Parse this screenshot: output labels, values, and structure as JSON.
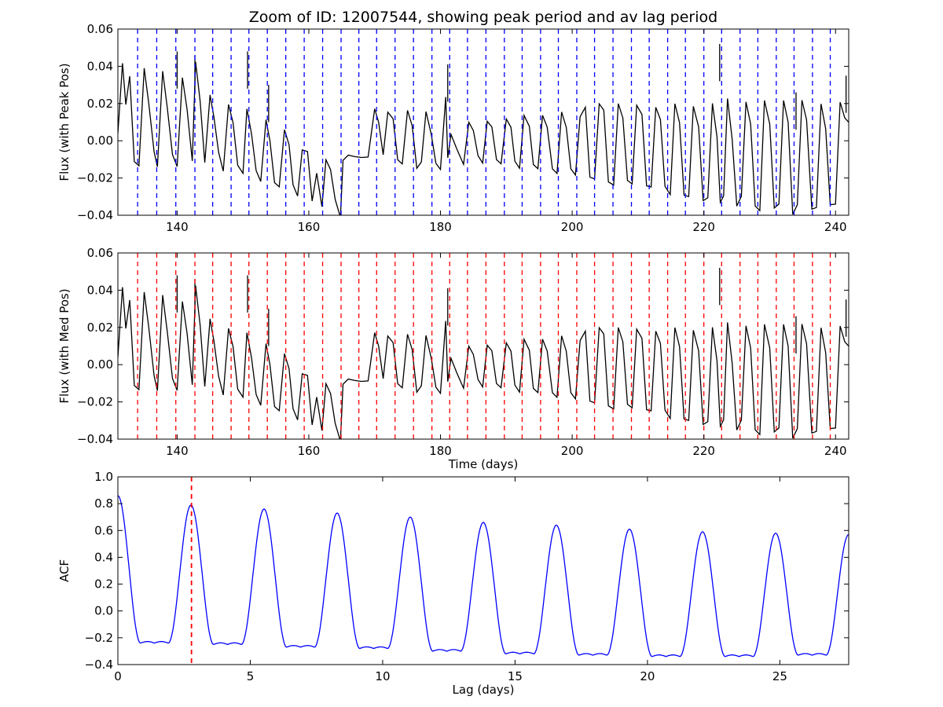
{
  "title": "Zoom of ID: 12007544, showing peak period and av lag period",
  "chart_data": [
    {
      "type": "line",
      "id": "peak",
      "ylabel": "Flux (with Peak Pos)",
      "xlabel": "",
      "xlim": [
        131,
        242
      ],
      "ylim": [
        -0.04,
        0.06
      ],
      "xticks": [
        140,
        160,
        180,
        200,
        220,
        240
      ],
      "yticks": [
        -0.04,
        -0.02,
        0.0,
        0.02,
        0.04,
        0.06
      ],
      "xtick_labels": [
        "140",
        "160",
        "180",
        "200",
        "220",
        "240"
      ],
      "ytick_labels": [
        "−0.04",
        "−0.02",
        "0.00",
        "0.02",
        "0.04",
        "0.06"
      ],
      "line_color": "#000000",
      "marker_color": "#0000ff",
      "series": [
        {
          "x": [
            131.0,
            131.7,
            132.2,
            132.8,
            133.5,
            134.2,
            135.0,
            135.7,
            136.5,
            137.0,
            137.8,
            138.5,
            139.3,
            140.0,
            140.8,
            141.5,
            142.3,
            142.8,
            143.5,
            144.2,
            145.0,
            145.6,
            146.3,
            147.0,
            147.8,
            148.5,
            149.2,
            150.0,
            150.6,
            151.3,
            152.0,
            152.7,
            153.5,
            154.1,
            154.8,
            155.5,
            156.3,
            157.0,
            157.6,
            158.3,
            159.0,
            159.8,
            160.5,
            161.2,
            162.0,
            162.6,
            163.3,
            164.0,
            164.8,
            165.2,
            166.0,
            167.0,
            168.0,
            169.0,
            170.0,
            170.6,
            171.3,
            172.0,
            172.8,
            173.5,
            174.2,
            175.0,
            175.7,
            176.4,
            177.1,
            177.8,
            178.6,
            179.3,
            180.0,
            180.8,
            181.1,
            181.6,
            182.5,
            183.5,
            184.3,
            185.0,
            185.7,
            186.4,
            187.1,
            187.8,
            188.5,
            189.2,
            190.0,
            190.7,
            191.3,
            192.0,
            192.7,
            193.5,
            194.1,
            194.8,
            195.5,
            196.2,
            197.0,
            197.7,
            198.4,
            199.1,
            199.8,
            200.5,
            201.2,
            202.0,
            202.7,
            203.4,
            204.1,
            204.8,
            205.5,
            206.3,
            207.0,
            207.7,
            208.4,
            209.1,
            209.8,
            210.6,
            211.3,
            212.0,
            212.7,
            213.4,
            214.1,
            214.9,
            215.6,
            216.3,
            217.0,
            217.7,
            218.4,
            219.2,
            219.9,
            220.6,
            221.3,
            222.0,
            222.5,
            223.0,
            223.6,
            224.3,
            225.0,
            225.7,
            226.4,
            227.1,
            227.8,
            228.5,
            229.2,
            230.0,
            230.7,
            231.4,
            232.1,
            232.8,
            233.5,
            234.2,
            234.9,
            235.6,
            236.4,
            237.1,
            237.8,
            238.5,
            239.2,
            240.0,
            240.7,
            241.4,
            242.0
          ],
          "y": [
            0.004,
            0.042,
            0.02,
            0.033,
            -0.01,
            -0.013,
            0.038,
            0.02,
            -0.006,
            -0.013,
            0.036,
            0.018,
            -0.006,
            -0.015,
            0.034,
            0.017,
            -0.01,
            0.042,
            0.02,
            -0.01,
            0.024,
            0.012,
            -0.006,
            -0.016,
            0.02,
            0.008,
            -0.012,
            -0.017,
            0.016,
            0.004,
            -0.016,
            -0.021,
            0.01,
            0.0,
            -0.021,
            -0.026,
            0.006,
            -0.002,
            -0.023,
            -0.03,
            -0.006,
            -0.004,
            -0.033,
            -0.018,
            -0.035,
            -0.01,
            -0.015,
            -0.033,
            -0.04,
            -0.01,
            -0.009,
            -0.008,
            -0.009,
            -0.008,
            0.016,
            0.01,
            -0.006,
            0.014,
            0.012,
            -0.01,
            -0.012,
            0.016,
            0.007,
            -0.013,
            -0.012,
            0.015,
            0.004,
            -0.012,
            -0.015,
            0.022,
            -0.008,
            0.004,
            -0.006,
            -0.012,
            0.01,
            0.006,
            -0.009,
            -0.012,
            0.012,
            0.006,
            -0.01,
            -0.012,
            0.012,
            0.007,
            -0.012,
            -0.013,
            0.013,
            0.007,
            -0.012,
            -0.015,
            0.014,
            0.006,
            -0.014,
            -0.017,
            0.014,
            0.008,
            -0.015,
            -0.018,
            0.012,
            0.018,
            -0.018,
            -0.022,
            0.02,
            0.017,
            -0.022,
            -0.024,
            0.019,
            0.014,
            -0.022,
            -0.024,
            0.02,
            0.014,
            -0.024,
            -0.026,
            0.019,
            0.012,
            -0.026,
            -0.028,
            0.02,
            0.01,
            -0.03,
            -0.03,
            0.02,
            0.006,
            -0.032,
            -0.03,
            0.02,
            0.002,
            -0.034,
            -0.028,
            0.022,
            0.0,
            -0.034,
            -0.03,
            0.021,
            0.008,
            -0.034,
            -0.037,
            0.02,
            0.01,
            -0.036,
            -0.034,
            0.021,
            0.01,
            -0.038,
            -0.036,
            0.022,
            0.012,
            -0.037,
            -0.036,
            0.019,
            0.008,
            -0.035,
            -0.035,
            0.022,
            0.012,
            0.01
          ]
        }
      ],
      "spikes": [
        {
          "x": 140.0,
          "y": 0.048
        },
        {
          "x": 142.7,
          "y": 0.046
        },
        {
          "x": 150.7,
          "y": 0.048
        },
        {
          "x": 153.9,
          "y": 0.03
        },
        {
          "x": 181.1,
          "y": 0.041
        },
        {
          "x": 222.4,
          "y": 0.052
        },
        {
          "x": 234.0,
          "y": 0.026
        },
        {
          "x": 241.6,
          "y": 0.035
        }
      ],
      "markers": [
        134.0,
        136.9,
        139.8,
        142.7,
        145.4,
        148.2,
        150.9,
        153.7,
        156.5,
        159.3,
        162.1,
        164.9,
        167.6,
        170.3,
        173.1,
        175.9,
        178.7,
        181.4,
        184.1,
        186.9,
        189.7,
        192.4,
        195.2,
        197.9,
        200.7,
        203.4,
        206.2,
        209.0,
        211.7,
        214.5,
        217.2,
        220.0,
        222.7,
        225.5,
        228.2,
        231.0,
        233.7,
        236.5,
        239.2
      ]
    },
    {
      "type": "line",
      "id": "median",
      "ylabel": "Flux (with Med Pos)",
      "xlabel": "Time (days)",
      "xlim": [
        131,
        242
      ],
      "ylim": [
        -0.04,
        0.06
      ],
      "xticks": [
        140,
        160,
        180,
        200,
        220,
        240
      ],
      "yticks": [
        -0.04,
        -0.02,
        0.0,
        0.02,
        0.04,
        0.06
      ],
      "xtick_labels": [
        "140",
        "160",
        "180",
        "200",
        "220",
        "240"
      ],
      "ytick_labels": [
        "−0.04",
        "−0.02",
        "0.00",
        "0.02",
        "0.04",
        "0.06"
      ],
      "line_color": "#000000",
      "marker_color": "#ff0000",
      "series_ref": "peak",
      "markers": [
        134.0,
        136.9,
        139.8,
        142.7,
        145.4,
        148.2,
        150.9,
        153.7,
        156.5,
        159.3,
        162.1,
        164.9,
        167.6,
        170.3,
        173.1,
        175.9,
        178.7,
        181.4,
        184.1,
        186.9,
        189.7,
        192.4,
        195.2,
        197.9,
        200.7,
        203.4,
        206.2,
        209.0,
        211.7,
        214.5,
        217.2,
        220.0,
        222.7,
        225.5,
        228.2,
        231.0,
        233.7,
        236.5,
        239.2
      ]
    },
    {
      "type": "line",
      "id": "acf",
      "ylabel": "ACF",
      "xlabel": "Lag (days)",
      "xlim": [
        0,
        27.6
      ],
      "ylim": [
        -0.4,
        1.0
      ],
      "xticks": [
        0,
        5,
        10,
        15,
        20,
        25
      ],
      "yticks": [
        -0.4,
        -0.2,
        0.0,
        0.2,
        0.4,
        0.6,
        0.8,
        1.0
      ],
      "xtick_labels": [
        "0",
        "5",
        "10",
        "15",
        "20",
        "25"
      ],
      "ytick_labels": [
        "−0.4",
        "−0.2",
        "0.0",
        "0.2",
        "0.4",
        "0.6",
        "0.8",
        "1.0"
      ],
      "line_color": "#0000ff",
      "marker_color": "#ff0000",
      "period": 2.76,
      "peaks": [
        0.86,
        0.79,
        0.76,
        0.73,
        0.7,
        0.66,
        0.64,
        0.61,
        0.59,
        0.58,
        0.57
      ],
      "troughs": [
        -0.24,
        -0.25,
        -0.27,
        -0.28,
        -0.3,
        -0.32,
        -0.33,
        -0.34,
        -0.34,
        -0.33
      ],
      "markers": [
        2.78
      ]
    }
  ]
}
